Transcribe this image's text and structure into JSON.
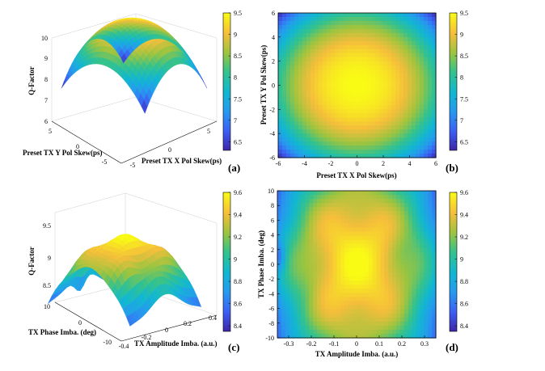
{
  "colors": {
    "low": "#3e26a8",
    "mid": "#17b9a3",
    "high": "#f9fb15"
  },
  "chart_data": [
    {
      "id": "a",
      "panel_label": "(a)",
      "type": "surface",
      "zlabel": "Q-Factor",
      "xlabel": "Preset TX X Pol Skew(ps)",
      "ylabel": "Preset TX Y Pol Skew(ps)",
      "xlim": [
        -6,
        6
      ],
      "ylim": [
        -6,
        6
      ],
      "zlim": [
        6,
        10
      ],
      "x_ticks": [
        "-5",
        "0",
        "5"
      ],
      "y_ticks": [
        "5",
        "0",
        "-5"
      ],
      "z_ticks": [
        "6",
        "7",
        "8",
        "9",
        "10"
      ],
      "clim": [
        6.3,
        9.5
      ],
      "colorbar_ticks": [
        "9.5",
        "9",
        "8.5",
        "8",
        "7.5",
        "7",
        "6.5"
      ],
      "peak": 9.5,
      "corner_min": 6.3
    },
    {
      "id": "b",
      "panel_label": "(b)",
      "type": "heatmap",
      "xlabel": "Preset TX X Pol Skew(ps)",
      "ylabel": "Preset TX Y Pol Skew(ps)",
      "xlim": [
        -6,
        6
      ],
      "ylim": [
        -6,
        6
      ],
      "x_ticks": [
        "-6",
        "-4",
        "-2",
        "0",
        "2",
        "4",
        "6"
      ],
      "y_ticks": [
        "6",
        "4",
        "2",
        "0",
        "-2",
        "-4",
        "-6"
      ],
      "clim": [
        6.3,
        9.5
      ],
      "colorbar_ticks": [
        "9.5",
        "9",
        "8.5",
        "8",
        "7.5",
        "7",
        "6.5"
      ],
      "peak": 9.5,
      "corner_min": 6.3
    },
    {
      "id": "c",
      "panel_label": "(c)",
      "type": "surface",
      "zlabel": "Q-Factor",
      "xlabel": "TX Phase Imba. (deg)",
      "ylabel": "TX Amplitude Imba. (a.u.)",
      "xlim": [
        -10,
        10
      ],
      "ylim": [
        -0.4,
        0.4
      ],
      "zlim": [
        8.3,
        9.6
      ],
      "x_ticks": [
        "10",
        "0",
        "-10"
      ],
      "y_ticks": [
        "-0.4",
        "-0.2",
        "0",
        "0.2",
        "0.4"
      ],
      "z_ticks": [
        "8.5",
        "9",
        "9.5"
      ],
      "clim": [
        8.35,
        9.6
      ],
      "colorbar_ticks": [
        "9.6",
        "9.4",
        "9.2",
        "9",
        "8.8",
        "8.6",
        "8.4"
      ]
    },
    {
      "id": "d",
      "panel_label": "(d)",
      "type": "heatmap",
      "xlabel": "TX Amplitude Imba. (a.u.)",
      "ylabel": "TX Phase Imba. (deg)",
      "xlim": [
        -0.35,
        0.35
      ],
      "ylim": [
        -10,
        10
      ],
      "x_ticks": [
        "-0.3",
        "-0.2",
        "-0.1",
        "0",
        "0.1",
        "0.2",
        "0.3"
      ],
      "y_ticks": [
        "10",
        "8",
        "6",
        "4",
        "2",
        "0",
        "-2",
        "-4",
        "-6",
        "-8",
        "-10"
      ],
      "clim": [
        8.35,
        9.6
      ],
      "colorbar_ticks": [
        "9.6",
        "9.4",
        "9.2",
        "9",
        "8.8",
        "8.6",
        "8.4"
      ]
    }
  ]
}
